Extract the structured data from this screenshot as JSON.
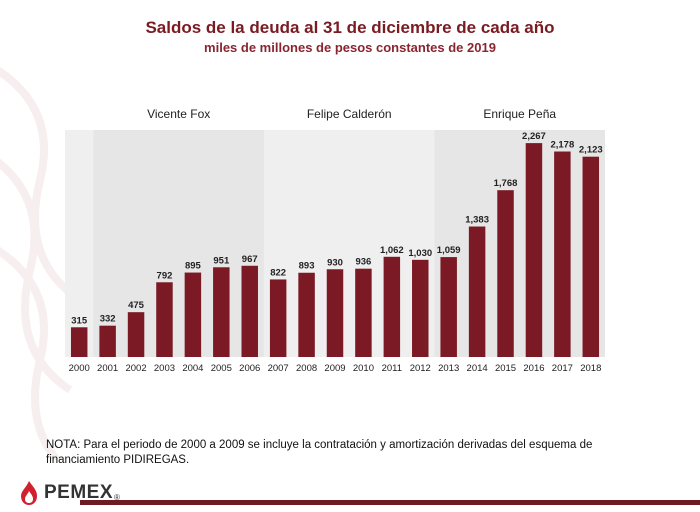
{
  "title": "Saldos de la deuda al 31 de diciembre de cada año",
  "subtitle": "miles de millones de pesos constantes de 2019",
  "note": "NOTA: Para el periodo de 2000 a 2009 se incluye la contratación y amortización derivadas del esquema de financiamiento PIDIREGAS.",
  "logo": {
    "text": "PEMEX",
    "reg": "®"
  },
  "colors": {
    "bar": "#7b1a24",
    "shade_a": "#e6e6e6",
    "shade_b": "#efefef",
    "accent": "#7a1b22"
  },
  "chart_data": {
    "type": "bar",
    "title": "Saldos de la deuda al 31 de diciembre de cada año",
    "subtitle": "miles de millones de pesos constantes de 2019",
    "xlabel": "",
    "ylabel": "",
    "ylim": [
      0,
      2300
    ],
    "grid": false,
    "categories": [
      "2000",
      "2001",
      "2002",
      "2003",
      "2004",
      "2005",
      "2006",
      "2007",
      "2008",
      "2009",
      "2010",
      "2011",
      "2012",
      "2013",
      "2014",
      "2015",
      "2016",
      "2017",
      "2018"
    ],
    "values": [
      315,
      332,
      475,
      792,
      895,
      951,
      967,
      822,
      893,
      930,
      936,
      1062,
      1030,
      1059,
      1383,
      1768,
      2267,
      2178,
      2123
    ],
    "value_labels": [
      "315",
      "332",
      "475",
      "792",
      "895",
      "951",
      "967",
      "822",
      "893",
      "930",
      "936",
      "1,062",
      "1,030",
      "1,059",
      "1,383",
      "1,768",
      "2,267",
      "2,178",
      "2,123"
    ],
    "periods": [
      {
        "name": "Vicente Fox",
        "start": "2001",
        "end": "2006"
      },
      {
        "name": "Felipe Calderón",
        "start": "2007",
        "end": "2012"
      },
      {
        "name": "Enrique Peña",
        "start": "2013",
        "end": "2018"
      }
    ]
  }
}
